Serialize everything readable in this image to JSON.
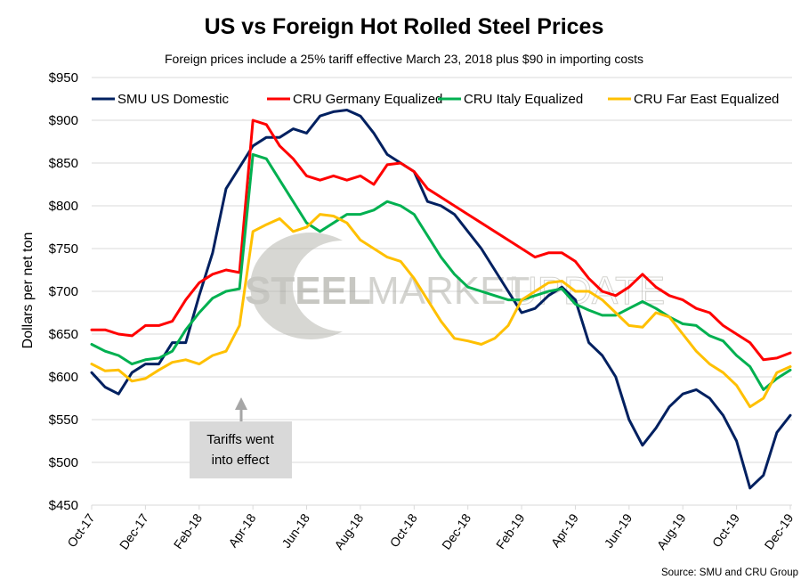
{
  "chart_data": {
    "type": "line",
    "title": "US vs Foreign Hot Rolled Steel Prices",
    "subtitle": "Foreign prices include a 25% tariff effective March 23, 2018 plus $90 in importing costs",
    "xlabel": "",
    "ylabel": "Dollars per net ton",
    "ylim": [
      450,
      950
    ],
    "ytick_step": 50,
    "ytick_prefix": "$",
    "grid": true,
    "legend_position": "top",
    "x_tick_labels": [
      "Oct-17",
      "Dec-17",
      "Feb-18",
      "Apr-18",
      "Jun-18",
      "Aug-18",
      "Oct-18",
      "Dec-18",
      "Feb-19",
      "Apr-19",
      "Jun-19",
      "Aug-19",
      "Oct-19",
      "Dec-19"
    ],
    "x_unit": "months since Oct-17",
    "x_range": [
      0,
      26
    ],
    "x": [
      0,
      0.5,
      1,
      1.5,
      2,
      2.5,
      3,
      3.5,
      4,
      4.5,
      5,
      5.5,
      6,
      6.5,
      7,
      7.5,
      8,
      8.5,
      9,
      9.5,
      10,
      10.5,
      11,
      11.5,
      12,
      12.5,
      13,
      13.5,
      14,
      14.5,
      15,
      15.5,
      16,
      16.5,
      17,
      17.5,
      18,
      18.5,
      19,
      19.5,
      20,
      20.5,
      21,
      21.5,
      22,
      22.5,
      23,
      23.5,
      24,
      24.5,
      25,
      25.5,
      26
    ],
    "series": [
      {
        "name": "SMU US Domestic",
        "color": "#002060",
        "values": [
          605,
          588,
          580,
          605,
          615,
          615,
          640,
          640,
          695,
          745,
          820,
          845,
          870,
          880,
          880,
          890,
          885,
          905,
          910,
          912,
          905,
          885,
          860,
          850,
          840,
          805,
          800,
          790,
          770,
          750,
          725,
          700,
          675,
          680,
          695,
          705,
          690,
          640,
          625,
          600,
          550,
          520,
          540,
          565,
          580,
          585,
          575,
          555,
          525,
          470,
          485,
          535,
          555
        ]
      },
      {
        "name": "CRU Germany Equalized",
        "color": "#ff0000",
        "values": [
          655,
          655,
          650,
          648,
          660,
          660,
          665,
          690,
          710,
          720,
          725,
          722,
          900,
          895,
          870,
          855,
          835,
          830,
          835,
          830,
          835,
          825,
          848,
          850,
          840,
          820,
          810,
          800,
          790,
          780,
          770,
          760,
          750,
          740,
          745,
          745,
          735,
          715,
          700,
          695,
          705,
          720,
          705,
          695,
          690,
          680,
          675,
          660,
          650,
          640,
          620,
          622,
          628
        ]
      },
      {
        "name": "CRU Italy Equalized",
        "color": "#00b050",
        "values": [
          638,
          630,
          625,
          615,
          620,
          622,
          630,
          655,
          675,
          692,
          700,
          703,
          860,
          855,
          830,
          805,
          780,
          770,
          780,
          790,
          790,
          795,
          805,
          800,
          790,
          765,
          740,
          720,
          705,
          700,
          695,
          690,
          690,
          695,
          700,
          703,
          685,
          678,
          672,
          672,
          680,
          688,
          680,
          670,
          662,
          660,
          648,
          642,
          625,
          612,
          585,
          598,
          608
        ]
      },
      {
        "name": "CRU Far East Equalized",
        "color": "#ffc000",
        "values": [
          615,
          607,
          608,
          595,
          598,
          608,
          617,
          620,
          615,
          625,
          630,
          660,
          770,
          778,
          785,
          770,
          775,
          790,
          788,
          780,
          760,
          750,
          740,
          735,
          715,
          690,
          665,
          645,
          642,
          638,
          645,
          660,
          690,
          700,
          710,
          712,
          700,
          700,
          690,
          675,
          660,
          658,
          675,
          670,
          650,
          630,
          615,
          605,
          590,
          565,
          575,
          605,
          612
        ]
      }
    ],
    "annotations": [
      {
        "text_lines": [
          "Tariffs went",
          "into effect"
        ],
        "x": 5.6,
        "arrow": "up"
      }
    ],
    "watermark": {
      "left": "STEEL",
      "middle": "MARKET",
      "right": "UPDATE"
    },
    "source": "Source: SMU and CRU Group"
  }
}
